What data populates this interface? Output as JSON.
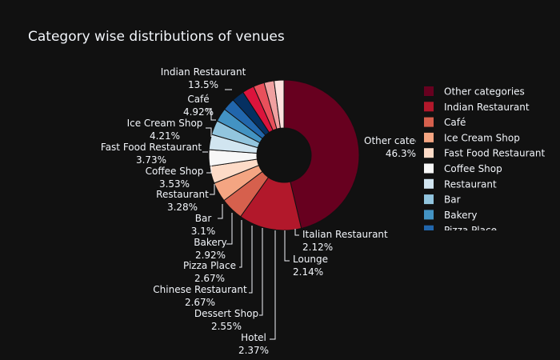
{
  "chart_data": {
    "type": "pie",
    "hole": true,
    "title": "Category wise distributions of venues",
    "slices": [
      {
        "label": "Other categories",
        "percent_label": "46.3%",
        "value": 46.3,
        "color": "#67001f"
      },
      {
        "label": "Indian Restaurant",
        "percent_label": "13.5%",
        "value": 13.5,
        "color": "#b2182b"
      },
      {
        "label": "Café",
        "percent_label": "4.92%",
        "value": 4.92,
        "color": "#d6604d"
      },
      {
        "label": "Ice Cream Shop",
        "percent_label": "4.21%",
        "value": 4.21,
        "color": "#f4a582"
      },
      {
        "label": "Fast Food Restaurant",
        "percent_label": "3.73%",
        "value": 3.73,
        "color": "#fddbc7"
      },
      {
        "label": "Coffee Shop",
        "percent_label": "3.53%",
        "value": 3.53,
        "color": "#f7f7f7"
      },
      {
        "label": "Restaurant",
        "percent_label": "3.28%",
        "value": 3.28,
        "color": "#d1e5f0"
      },
      {
        "label": "Bar",
        "percent_label": "3.1%",
        "value": 3.1,
        "color": "#92c5de"
      },
      {
        "label": "Bakery",
        "percent_label": "2.92%",
        "value": 2.92,
        "color": "#4393c3"
      },
      {
        "label": "Pizza Place",
        "percent_label": "2.67%",
        "value": 2.67,
        "color": "#2166ac"
      },
      {
        "label": "Chinese Restaurant",
        "percent_label": "2.67%",
        "value": 2.67,
        "color": "#053061"
      },
      {
        "label": "Dessert Shop",
        "percent_label": "2.55%",
        "value": 2.55,
        "color": "#dc143c"
      },
      {
        "label": "Hotel",
        "percent_label": "2.37%",
        "value": 2.37,
        "color": "#e8505b"
      },
      {
        "label": "Lounge",
        "percent_label": "2.14%",
        "value": 2.14,
        "color": "#f0a0a0"
      },
      {
        "label": "Italian Restaurant",
        "percent_label": "2.12%",
        "value": 2.12,
        "color": "#fde0dd"
      }
    ],
    "legend": {
      "placement": "right",
      "visible_items": [
        "Other categories",
        "Indian Restaurant",
        "Café",
        "Ice Cream Shop",
        "Fast Food Restaurant",
        "Coffee Shop",
        "Restaurant",
        "Bar",
        "Bakery",
        "Pizza Place"
      ]
    }
  }
}
